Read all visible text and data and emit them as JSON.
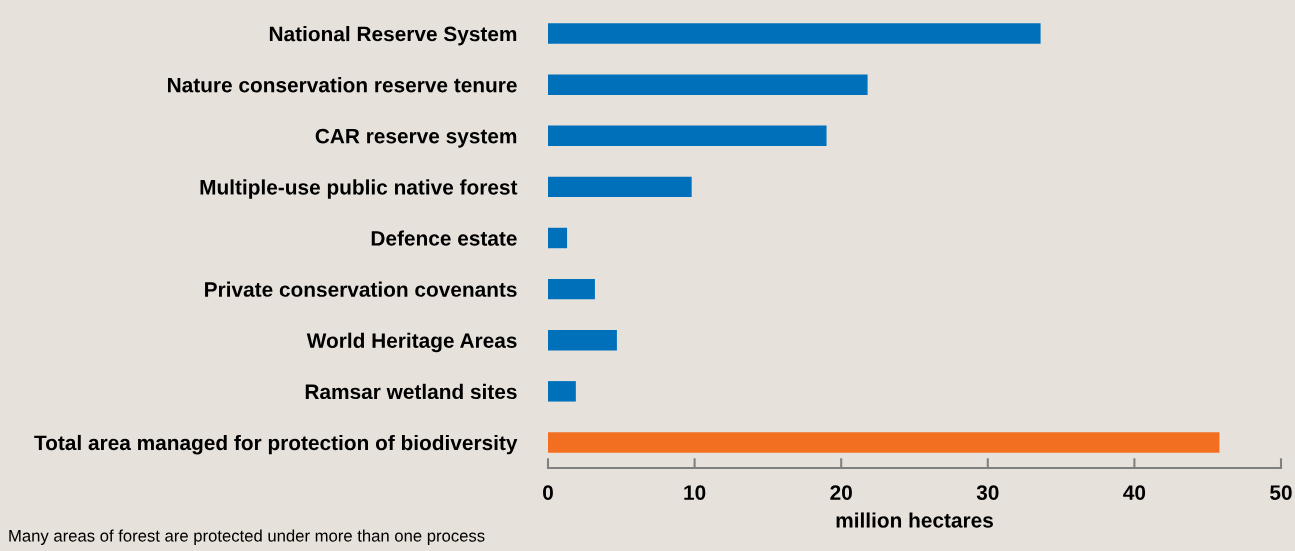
{
  "chart_data": {
    "type": "bar",
    "orientation": "horizontal",
    "xlabel": "million hectares",
    "categories": [
      "National Reserve System",
      "Nature conservation reserve tenure",
      "CAR reserve system",
      "Multiple-use public native forest",
      "Defence estate",
      "Private conservation covenants",
      "World Heritage Areas",
      "Ramsar wetland sites",
      "Total area managed for protection of biodiversity"
    ],
    "values": [
      33.6,
      21.8,
      19.0,
      9.8,
      1.3,
      3.2,
      4.7,
      1.9,
      45.8
    ],
    "colors": [
      "#0070ba",
      "#0070ba",
      "#0070ba",
      "#0070ba",
      "#0070ba",
      "#0070ba",
      "#0070ba",
      "#0070ba",
      "#f26f21"
    ],
    "xlim": [
      0,
      50
    ],
    "xticks": [
      0,
      10,
      20,
      30,
      40,
      50
    ],
    "grid": false,
    "annotations": [
      "Many areas of forest are protected under more than one process"
    ]
  }
}
